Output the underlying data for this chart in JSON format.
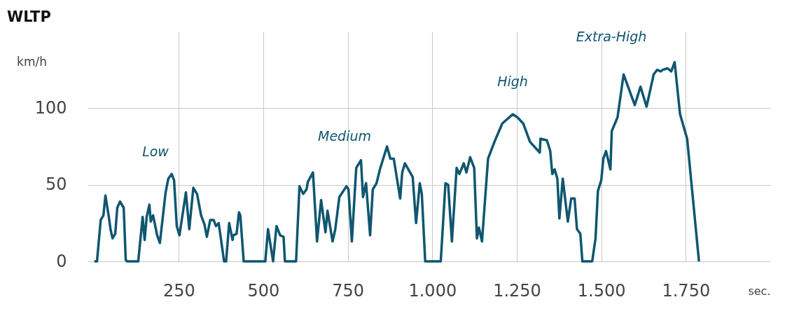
{
  "chart_data": {
    "type": "line",
    "title": "WLTP",
    "xlabel": "sec.",
    "ylabel": "km/h",
    "x": [
      0,
      8,
      19,
      27,
      33,
      43,
      48,
      54,
      62,
      68,
      76,
      87,
      93,
      97,
      130,
      143,
      149,
      155,
      163,
      167,
      174,
      186,
      194,
      211,
      219,
      229,
      236,
      244,
      252,
      271,
      281,
      293,
      304,
      316,
      326,
      333,
      343,
      353,
      360,
      368,
      384,
      390,
      399,
      409,
      411,
      421,
      428,
      432,
      442,
      506,
      514,
      529,
      539,
      550,
      560,
      564,
      597,
      607,
      618,
      628,
      632,
      647,
      659,
      671,
      684,
      690,
      705,
      713,
      725,
      746,
      752,
      762,
      775,
      789,
      795,
      804,
      816,
      824,
      835,
      845,
      866,
      876,
      886,
      905,
      911,
      919,
      942,
      952,
      963,
      969,
      979,
      1025,
      1039,
      1047,
      1058,
      1072,
      1080,
      1093,
      1101,
      1112,
      1124,
      1132,
      1138,
      1147,
      1165,
      1184,
      1207,
      1238,
      1252,
      1269,
      1289,
      1318,
      1320,
      1339,
      1349,
      1355,
      1362,
      1370,
      1376,
      1386,
      1401,
      1411,
      1421,
      1428,
      1438,
      1444,
      1469,
      1473,
      1483,
      1490,
      1500,
      1506,
      1514,
      1527,
      1531,
      1548,
      1566,
      1599,
      1616,
      1634,
      1655,
      1665,
      1676,
      1682,
      1696,
      1707,
      1717,
      1733,
      1754,
      1789
    ],
    "series": [
      {
        "color": "#0f5670",
        "values": [
          0,
          0,
          27,
          30,
          43,
          29,
          21,
          15,
          18,
          35,
          39,
          35,
          1,
          0,
          0,
          29,
          14,
          29,
          37,
          26,
          30,
          17,
          12,
          45,
          54,
          57,
          53,
          23,
          17,
          45,
          21,
          48,
          44,
          30,
          24,
          16,
          27,
          27,
          23,
          25,
          0,
          0,
          25,
          14,
          17,
          18,
          32,
          30,
          0,
          0,
          21,
          0,
          23,
          17,
          16,
          0,
          0,
          49,
          44,
          47,
          52,
          58,
          13,
          40,
          19,
          33,
          13,
          21,
          42,
          49,
          47,
          13,
          61,
          66,
          42,
          51,
          17,
          47,
          51,
          60,
          75,
          67,
          67,
          41,
          58,
          64,
          55,
          25,
          51,
          44,
          0,
          0,
          51,
          50,
          13,
          61,
          57,
          64,
          58,
          68,
          61,
          15,
          22,
          13,
          67,
          78,
          90,
          96,
          94,
          90,
          78,
          71,
          80,
          79,
          72,
          57,
          60,
          54,
          28,
          54,
          26,
          41,
          41,
          21,
          18,
          0,
          0,
          0,
          15,
          46,
          53,
          67,
          72,
          60,
          85,
          94,
          122,
          102,
          114,
          101,
          122,
          125,
          124,
          125,
          126,
          124,
          130,
          96,
          80,
          0
        ]
      }
    ],
    "xlim": [
      -20,
      2000
    ],
    "ylim": [
      0,
      150
    ],
    "xticks": [
      250,
      500,
      750,
      {
        "value": 1000,
        "label": "1.000"
      },
      {
        "value": 1250,
        "label": "1.250"
      },
      {
        "value": 1500,
        "label": "1.500"
      },
      {
        "value": 1750,
        "label": "1.750"
      }
    ],
    "yticks": [
      0,
      50,
      100
    ],
    "grid": true,
    "line_style": "solid",
    "marker": "none",
    "annotations": [
      "Low",
      "Medium",
      "High",
      "Extra-High"
    ]
  }
}
